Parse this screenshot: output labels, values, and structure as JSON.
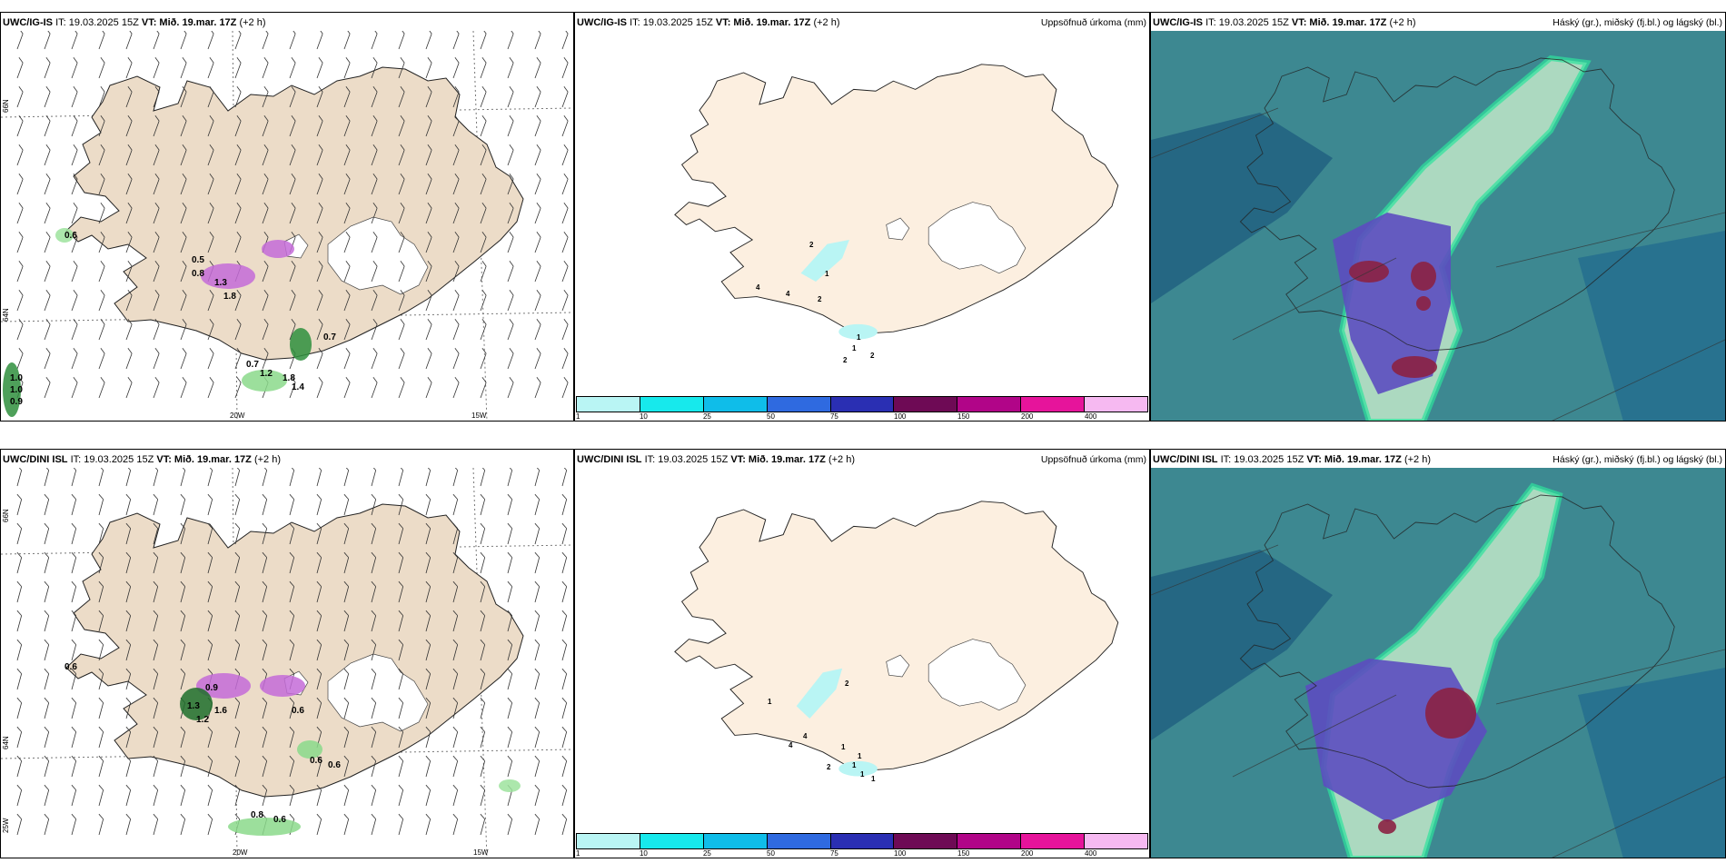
{
  "rows": [
    {
      "model": "UWC/IG-IS",
      "it": "IT: 19.03.2025 15Z",
      "vt": "VT: Mið. 19.mar. 17Z",
      "lead": "(+2 h)",
      "precip_labels": [
        "0.6",
        "0.5",
        "0.8",
        "1.3",
        "1.8",
        "0.7",
        "0.7",
        "1.2",
        "1.8",
        "1.4",
        "1.0",
        "1.0",
        "0.9"
      ],
      "accum_labels": [
        "2",
        "4",
        "4",
        "1",
        "2",
        "1",
        "1",
        "2",
        "2"
      ]
    },
    {
      "model": "UWC/DINI ISL",
      "it": "IT: 19.03.2025 15Z",
      "vt": "VT: Mið. 19.mar. 17Z",
      "lead": "(+2 h)",
      "precip_labels": [
        "0.6",
        "0.9",
        "1.3",
        "1.2",
        "1.6",
        "0.6",
        "0.6",
        "0.8",
        "0.6",
        "0.6"
      ],
      "accum_labels": [
        "1",
        "4",
        "4",
        "2",
        "1",
        "1",
        "1",
        "2",
        "1",
        "1"
      ]
    }
  ],
  "panel_titles": {
    "accum": "Uppsöfnuð úrkoma (mm)",
    "cloud": "Háský (gr.), miðský (fj.bl.) og lágský (bl.)"
  },
  "axes": {
    "lon_labels": [
      "20W",
      "15W"
    ],
    "lat_labels": [
      "66N",
      "64N"
    ],
    "extra_left": "25W"
  },
  "colorbar": {
    "levels": [
      "1",
      "10",
      "25",
      "50",
      "75",
      "100",
      "150",
      "200",
      "400"
    ],
    "colors": [
      "#b9f5f4",
      "#17e9ec",
      "#0fbde9",
      "#2f6ae0",
      "#2a2fb3",
      "#6e0a55",
      "#b10588",
      "#e6149b",
      "#f6b9f1"
    ]
  },
  "colors": {
    "land": "#ecdcc8",
    "land_accum": "#fcefe0",
    "sea": "#ffffff"
  }
}
